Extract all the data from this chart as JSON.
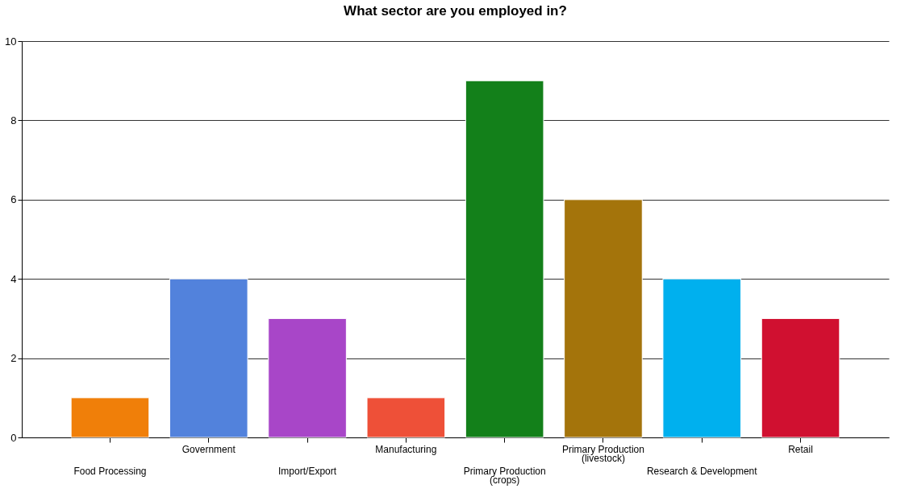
{
  "chart_data": {
    "type": "bar",
    "title": "What sector are you employed in?",
    "categories": [
      "Food Processing",
      "Government",
      "Import/Export",
      "Manufacturing",
      "Primary Production\n(crops)",
      "Primary Production\n(livestock)",
      "Research & Development",
      "Retail"
    ],
    "values": [
      1,
      4,
      3,
      1,
      9,
      6,
      4,
      3
    ],
    "colors": [
      "#f07f09",
      "#5282dc",
      "#a846c8",
      "#ee5038",
      "#13801a",
      "#a4740b",
      "#00b0ee",
      "#d01030"
    ],
    "ylim": [
      0,
      10
    ],
    "yticks": [
      0,
      2,
      4,
      6,
      8,
      10
    ],
    "grid": "y",
    "legend": false
  }
}
